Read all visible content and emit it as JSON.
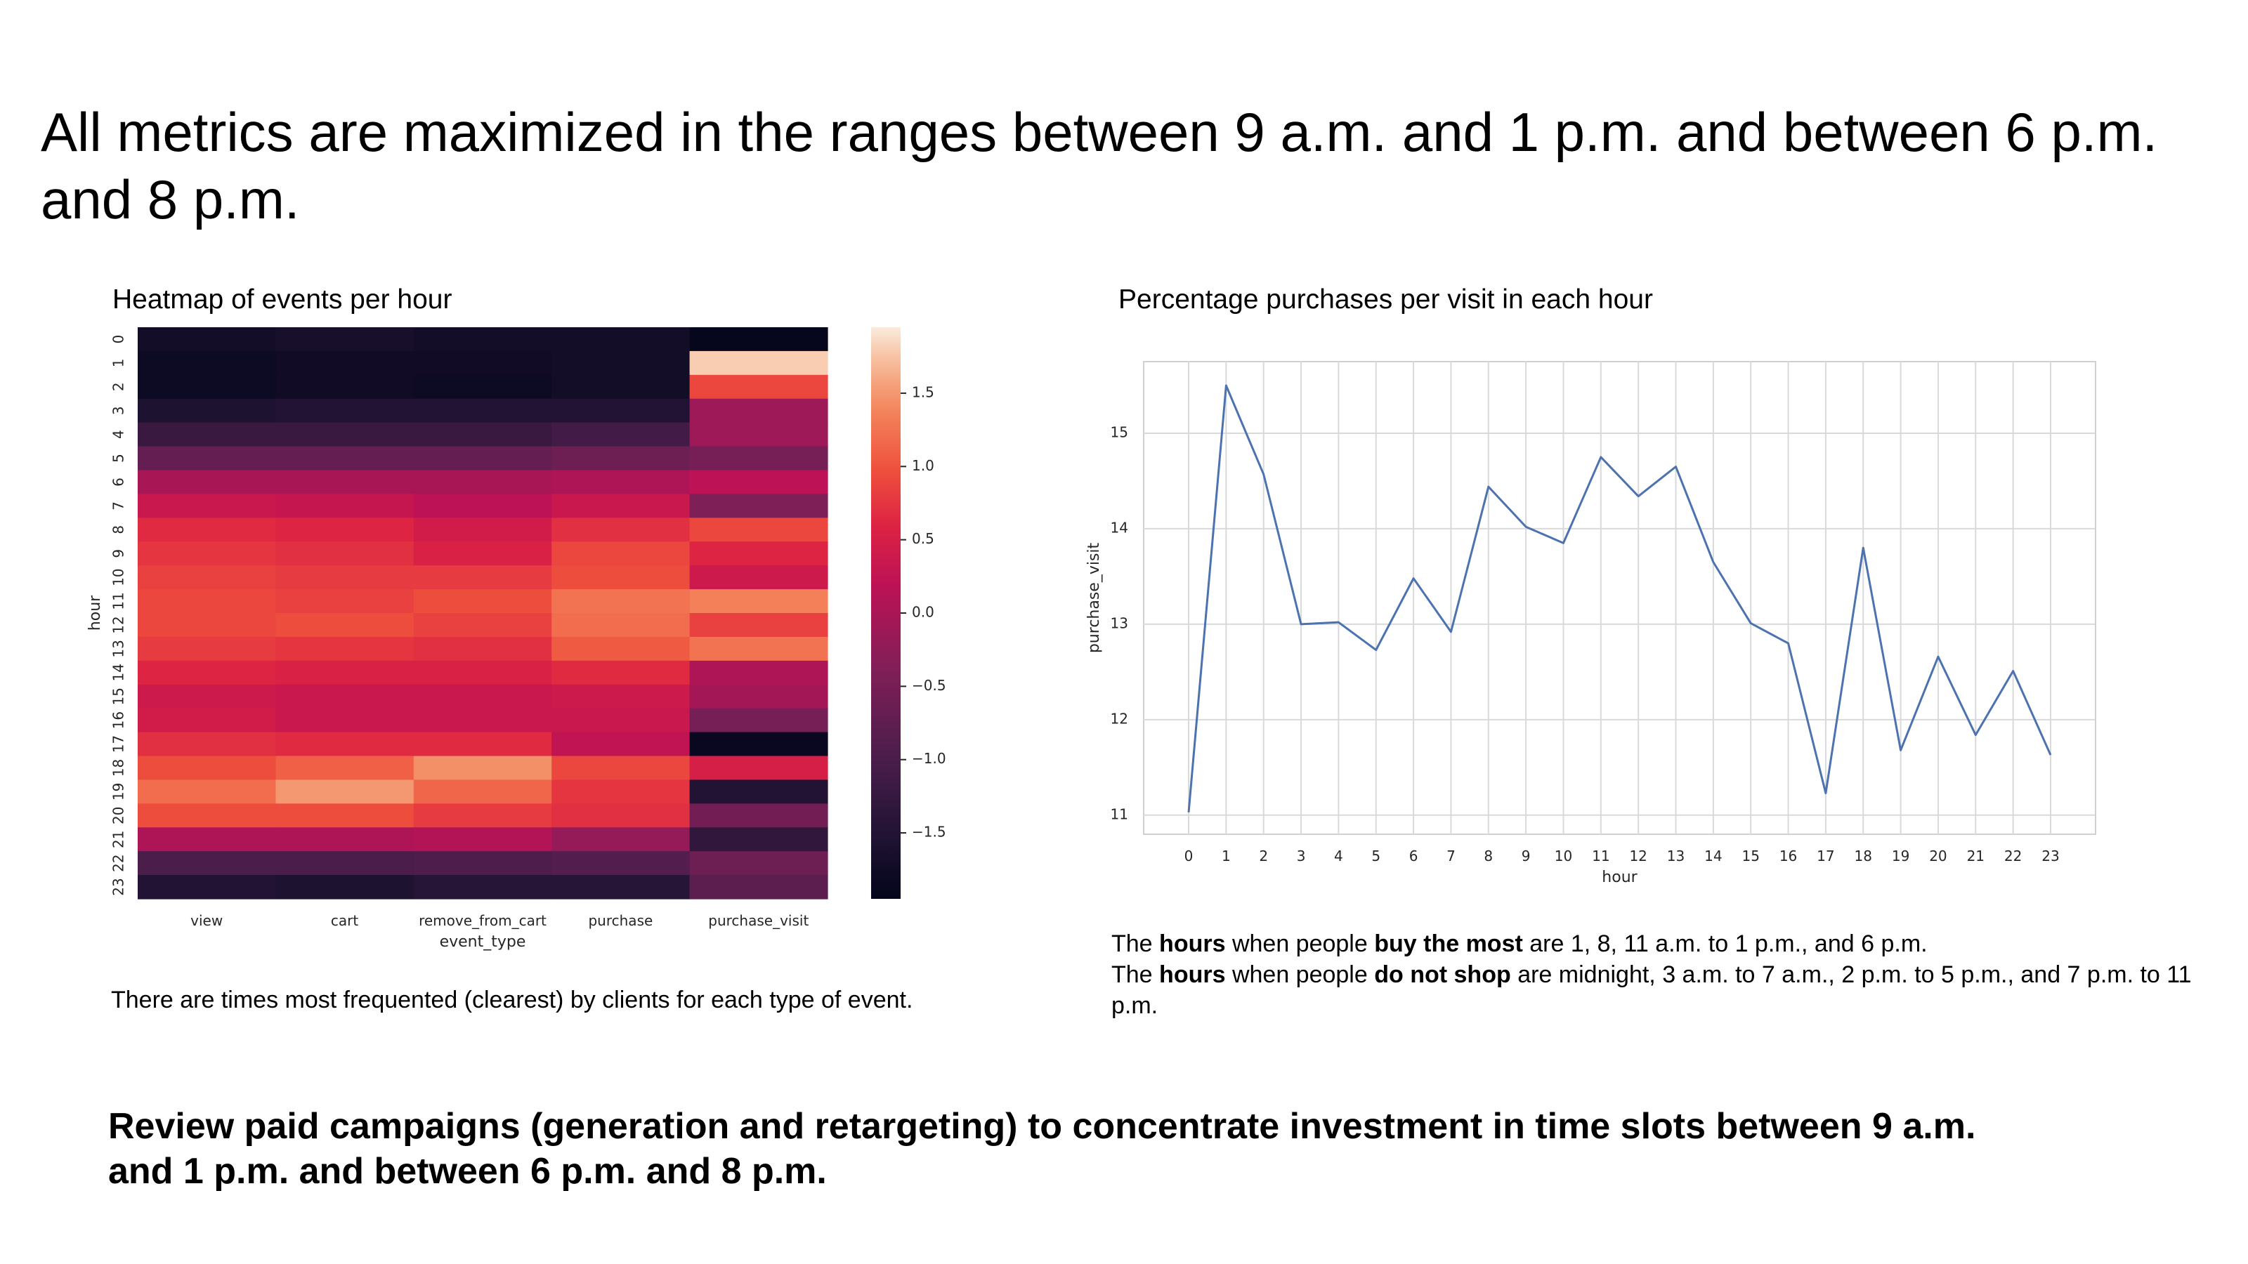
{
  "headline": "All metrics are maximized in the ranges between 9 a.m. and 1 p.m. and between 6 p.m. and 8 p.m.",
  "heatmap_panel": {
    "title": "Heatmap of events per hour",
    "caption": "There are times most frequented (clearest) by clients for each type of event."
  },
  "line_panel": {
    "title": "Percentage purchases per visit in each hour",
    "caption_line1": {
      "t1": "The ",
      "b1": "hours",
      "t2": " when people ",
      "b2": "buy the most",
      "t3": " are 1, 8, 11 a.m. to 1 p.m., and 6 p.m."
    },
    "caption_line2": {
      "t1": "The ",
      "b1": "hours",
      "t2": " when people ",
      "b2": "do not shop",
      "t3": " are midnight, 3 a.m. to 7 a.m., 2 p.m. to 5 p.m., and 7 p.m. to 11 p.m."
    }
  },
  "conclusion": "Review paid campaigns (generation and retargeting) to concentrate investment in time slots between 9 a.m. and 1 p.m. and between 6 p.m. and 8 p.m.",
  "chart_data": [
    {
      "type": "heatmap",
      "title": "Heatmap of events per hour",
      "xlabel": "event_type",
      "ylabel": "hour",
      "columns": [
        "view",
        "cart",
        "remove_from_cart",
        "purchase",
        "purchase_visit"
      ],
      "rows": [
        "0",
        "1",
        "2",
        "3",
        "4",
        "5",
        "6",
        "7",
        "8",
        "9",
        "10",
        "11",
        "12",
        "13",
        "14",
        "15",
        "16",
        "17",
        "18",
        "19",
        "20",
        "21",
        "22",
        "23"
      ],
      "values": [
        [
          -1.7,
          -1.65,
          -1.7,
          -1.7,
          -1.9
        ],
        [
          -1.8,
          -1.75,
          -1.75,
          -1.7,
          1.8
        ],
        [
          -1.8,
          -1.75,
          -1.8,
          -1.7,
          0.9
        ],
        [
          -1.55,
          -1.5,
          -1.5,
          -1.5,
          -0.1
        ],
        [
          -1.2,
          -1.2,
          -1.2,
          -1.1,
          -0.1
        ],
        [
          -0.7,
          -0.7,
          -0.7,
          -0.6,
          -0.5
        ],
        [
          0.0,
          0.0,
          0.0,
          0.05,
          0.2
        ],
        [
          0.35,
          0.3,
          0.2,
          0.35,
          -0.4
        ],
        [
          0.65,
          0.6,
          0.45,
          0.7,
          0.9
        ],
        [
          0.75,
          0.7,
          0.55,
          0.9,
          0.6
        ],
        [
          0.85,
          0.8,
          0.8,
          0.95,
          0.4
        ],
        [
          0.9,
          0.85,
          0.95,
          1.25,
          1.35
        ],
        [
          0.9,
          0.95,
          0.85,
          1.2,
          0.85
        ],
        [
          0.8,
          0.75,
          0.7,
          1.05,
          1.25
        ],
        [
          0.6,
          0.55,
          0.55,
          0.65,
          0.05
        ],
        [
          0.4,
          0.35,
          0.35,
          0.4,
          -0.05
        ],
        [
          0.45,
          0.35,
          0.35,
          0.35,
          -0.5
        ],
        [
          0.7,
          0.65,
          0.65,
          0.25,
          -1.85
        ],
        [
          0.95,
          1.1,
          1.45,
          0.9,
          0.5
        ],
        [
          1.2,
          1.5,
          1.15,
          0.75,
          -1.5
        ],
        [
          0.95,
          0.95,
          0.8,
          0.7,
          -0.55
        ],
        [
          0.05,
          0.05,
          0.1,
          -0.2,
          -1.3
        ],
        [
          -1.0,
          -1.0,
          -0.95,
          -0.9,
          -0.6
        ],
        [
          -1.5,
          -1.55,
          -1.45,
          -1.45,
          -0.8
        ]
      ],
      "colorbar": {
        "ticks": [
          -1.5,
          -1.0,
          -0.5,
          0.0,
          0.5,
          1.0,
          1.5
        ],
        "range": [
          -1.95,
          1.95
        ]
      }
    },
    {
      "type": "line",
      "title": "Percentage purchases per visit in each hour",
      "xlabel": "hour",
      "ylabel": "purchase_visit",
      "x": [
        0,
        1,
        2,
        3,
        4,
        5,
        6,
        7,
        8,
        9,
        10,
        11,
        12,
        13,
        14,
        15,
        16,
        17,
        18,
        19,
        20,
        21,
        22,
        23
      ],
      "y": [
        11.03,
        15.5,
        14.57,
        13.0,
        13.02,
        12.73,
        13.48,
        12.92,
        14.44,
        14.02,
        13.85,
        14.75,
        14.34,
        14.65,
        13.65,
        13.01,
        12.8,
        11.23,
        13.8,
        11.68,
        12.66,
        11.84,
        12.51,
        11.63
      ],
      "xticks": [
        "0",
        "1",
        "2",
        "3",
        "4",
        "5",
        "6",
        "7",
        "8",
        "9",
        "10",
        "11",
        "12",
        "13",
        "14",
        "15",
        "16",
        "17",
        "18",
        "19",
        "20",
        "21",
        "22",
        "23"
      ],
      "yticks": [
        11,
        12,
        13,
        14,
        15
      ],
      "xlim": [
        -1.2,
        24.2
      ],
      "ylim": [
        10.8,
        15.75
      ],
      "grid": true,
      "line_color": "#4c72b0"
    }
  ]
}
